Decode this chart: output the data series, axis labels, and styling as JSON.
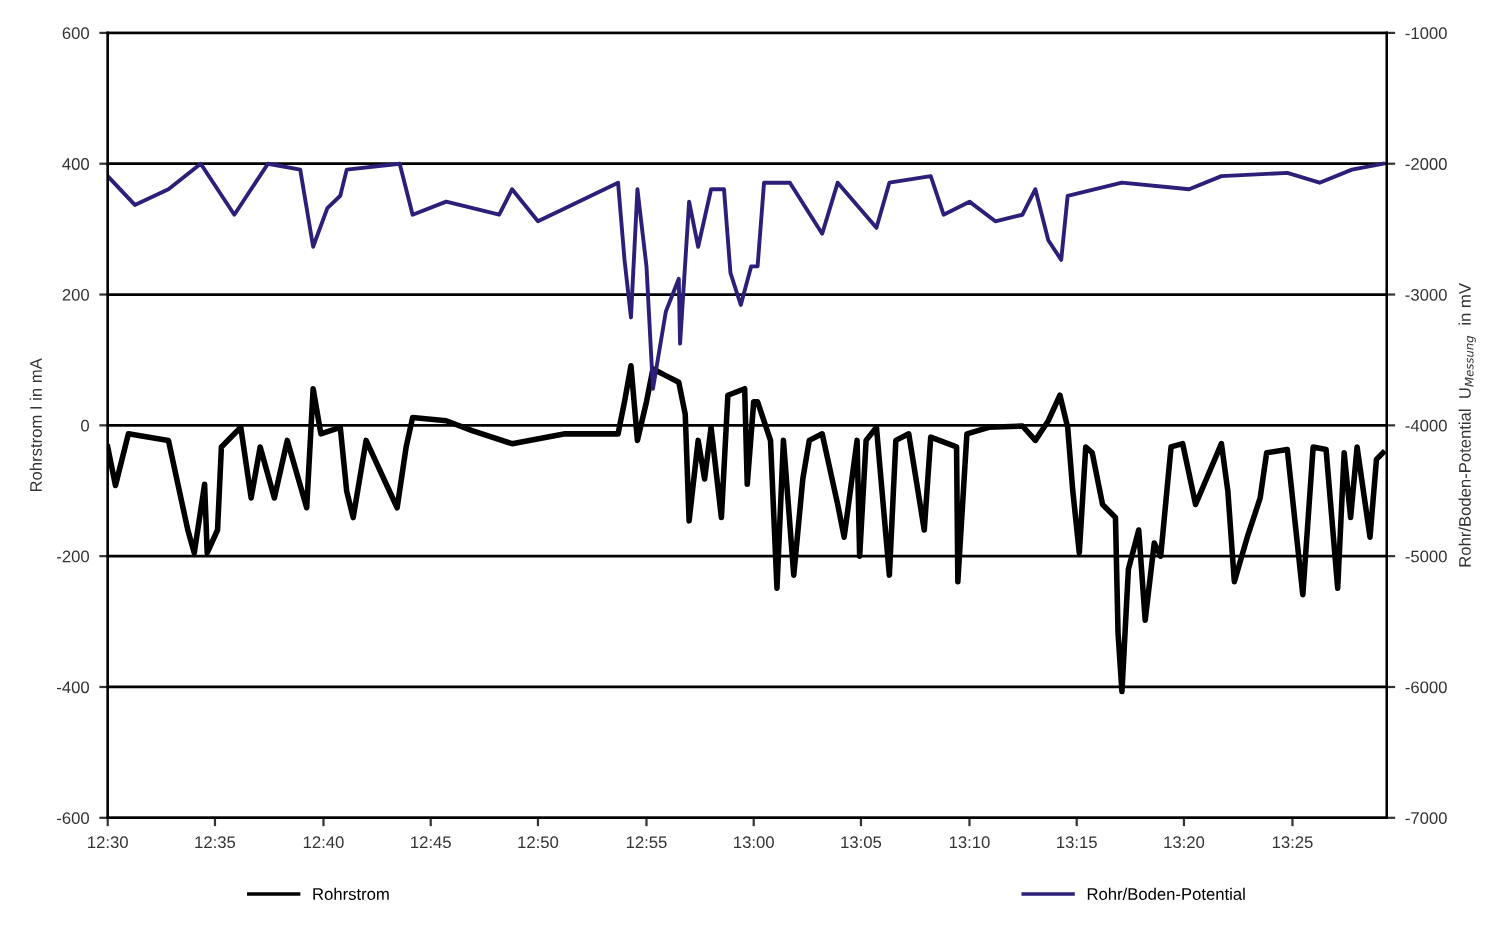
{
  "chart_data": {
    "type": "line",
    "ylabel": "Rohrstrom I in mA",
    "y2label": "Rohr/Boden-Potential  U$_{Messung}$  in mV",
    "xlim": [
      12.5,
      13.49
    ],
    "ylim": [
      -600,
      600
    ],
    "y2lim": [
      -7000,
      -1000
    ],
    "xticks": [
      {
        "value": 12.5,
        "label": "12:30"
      },
      {
        "value": 12.583,
        "label": "12:35"
      },
      {
        "value": 12.667,
        "label": "12:40"
      },
      {
        "value": 12.75,
        "label": "12:45"
      },
      {
        "value": 12.833,
        "label": "12:50"
      },
      {
        "value": 12.917,
        "label": "12:55"
      },
      {
        "value": 13.0,
        "label": "13:00"
      },
      {
        "value": 13.083,
        "label": "13:05"
      },
      {
        "value": 13.167,
        "label": "13:10"
      },
      {
        "value": 13.25,
        "label": "13:15"
      },
      {
        "value": 13.333,
        "label": "13:20"
      },
      {
        "value": 13.417,
        "label": "13:25"
      }
    ],
    "yticks": [
      -600,
      -400,
      -200,
      0,
      200,
      400,
      600
    ],
    "y2ticks": [
      -7000,
      -6000,
      -5000,
      -4000,
      -3000,
      -2000,
      -1000
    ],
    "grid": "y",
    "legend": "bottom",
    "series": [
      {
        "name": "Rohrstrom",
        "color": "#000000",
        "x": [
          12.5,
          12.506,
          12.516,
          12.547,
          12.562,
          12.567,
          12.575,
          12.577,
          12.585,
          12.588,
          12.603,
          12.611,
          12.618,
          12.629,
          12.639,
          12.654,
          12.659,
          12.665,
          12.68,
          12.685,
          12.69,
          12.7,
          12.724,
          12.731,
          12.736,
          12.762,
          12.782,
          12.813,
          12.854,
          12.895,
          12.9,
          12.905,
          12.91,
          12.917,
          12.922,
          12.932,
          12.942,
          12.947,
          12.95,
          12.957,
          12.962,
          12.967,
          12.975,
          12.98,
          12.993,
          12.995,
          13.0,
          13.003,
          13.013,
          13.018,
          13.023,
          13.031,
          13.038,
          13.043,
          13.053,
          13.065,
          13.07,
          13.08,
          13.082,
          13.087,
          13.095,
          13.105,
          13.11,
          13.12,
          13.132,
          13.137,
          13.157,
          13.158,
          13.165,
          13.182,
          13.208,
          13.218,
          13.228,
          13.237,
          13.243,
          13.247,
          13.252,
          13.257,
          13.262,
          13.27,
          13.28,
          13.282,
          13.285,
          13.29,
          13.298,
          13.303,
          13.31,
          13.315,
          13.323,
          13.332,
          13.342,
          13.362,
          13.367,
          13.372,
          13.382,
          13.392,
          13.397,
          13.413,
          13.425,
          13.433,
          13.443,
          13.452,
          13.457,
          13.462,
          13.467,
          13.477,
          13.482,
          13.487
        ],
        "values": [
          -33,
          -92,
          -13,
          -23,
          -160,
          -195,
          -90,
          -195,
          -160,
          -33,
          -3,
          -111,
          -33,
          -111,
          -23,
          -126,
          56,
          -13,
          -3,
          -101,
          -141,
          -23,
          -126,
          -33,
          12,
          7,
          -8,
          -28,
          -13,
          -13,
          36,
          91,
          -23,
          36,
          86,
          76,
          66,
          17,
          -146,
          -23,
          -82,
          -3,
          -141,
          46,
          56,
          -90,
          36,
          36,
          -23,
          -249,
          -23,
          -229,
          -82,
          -23,
          -13,
          -121,
          -171,
          -23,
          -200,
          -23,
          -3,
          -229,
          -23,
          -13,
          -160,
          -18,
          -33,
          -239,
          -13,
          -3,
          -1,
          -23,
          7,
          46,
          -3,
          -101,
          -195,
          -33,
          -42,
          -121,
          -141,
          -318,
          -407,
          -220,
          -160,
          -298,
          -180,
          -200,
          -33,
          -28,
          -121,
          -28,
          -101,
          -239,
          -171,
          -111,
          -42,
          -37,
          -259,
          -33,
          -37,
          -249,
          -42,
          -141,
          -33,
          -171,
          -52,
          -42
        ]
      },
      {
        "name": "Rohr/Boden-Potential",
        "color": "#2b1f7a",
        "axis": "y2",
        "x": [
          12.5,
          12.521,
          12.547,
          12.572,
          12.598,
          12.624,
          12.649,
          12.659,
          12.67,
          12.68,
          12.685,
          12.726,
          12.736,
          12.762,
          12.803,
          12.813,
          12.833,
          12.854,
          12.895,
          12.9,
          12.905,
          12.91,
          12.917,
          12.922,
          12.932,
          12.942,
          12.943,
          12.95,
          12.957,
          12.967,
          12.977,
          12.982,
          12.99,
          12.998,
          13.003,
          13.008,
          13.028,
          13.053,
          13.065,
          13.095,
          13.105,
          13.137,
          13.147,
          13.167,
          13.187,
          13.208,
          13.218,
          13.228,
          13.238,
          13.243,
          13.285,
          13.337,
          13.362,
          13.413,
          13.438,
          13.463,
          13.487
        ],
        "values": [
          -2095,
          -2315,
          -2195,
          -2000,
          -2390,
          -2000,
          -2045,
          -2635,
          -2340,
          -2245,
          -2045,
          -2000,
          -2390,
          -2290,
          -2390,
          -2195,
          -2440,
          -2340,
          -2145,
          -2735,
          -3175,
          -2195,
          -2785,
          -3720,
          -3130,
          -2880,
          -3375,
          -2290,
          -2635,
          -2195,
          -2195,
          -2835,
          -3080,
          -2785,
          -2785,
          -2145,
          -2145,
          -2535,
          -2145,
          -2490,
          -2145,
          -2095,
          -2390,
          -2290,
          -2440,
          -2390,
          -2195,
          -2585,
          -2735,
          -2245,
          -2145,
          -2195,
          -2095,
          -2070,
          -2145,
          -2045,
          -2000
        ]
      }
    ]
  }
}
